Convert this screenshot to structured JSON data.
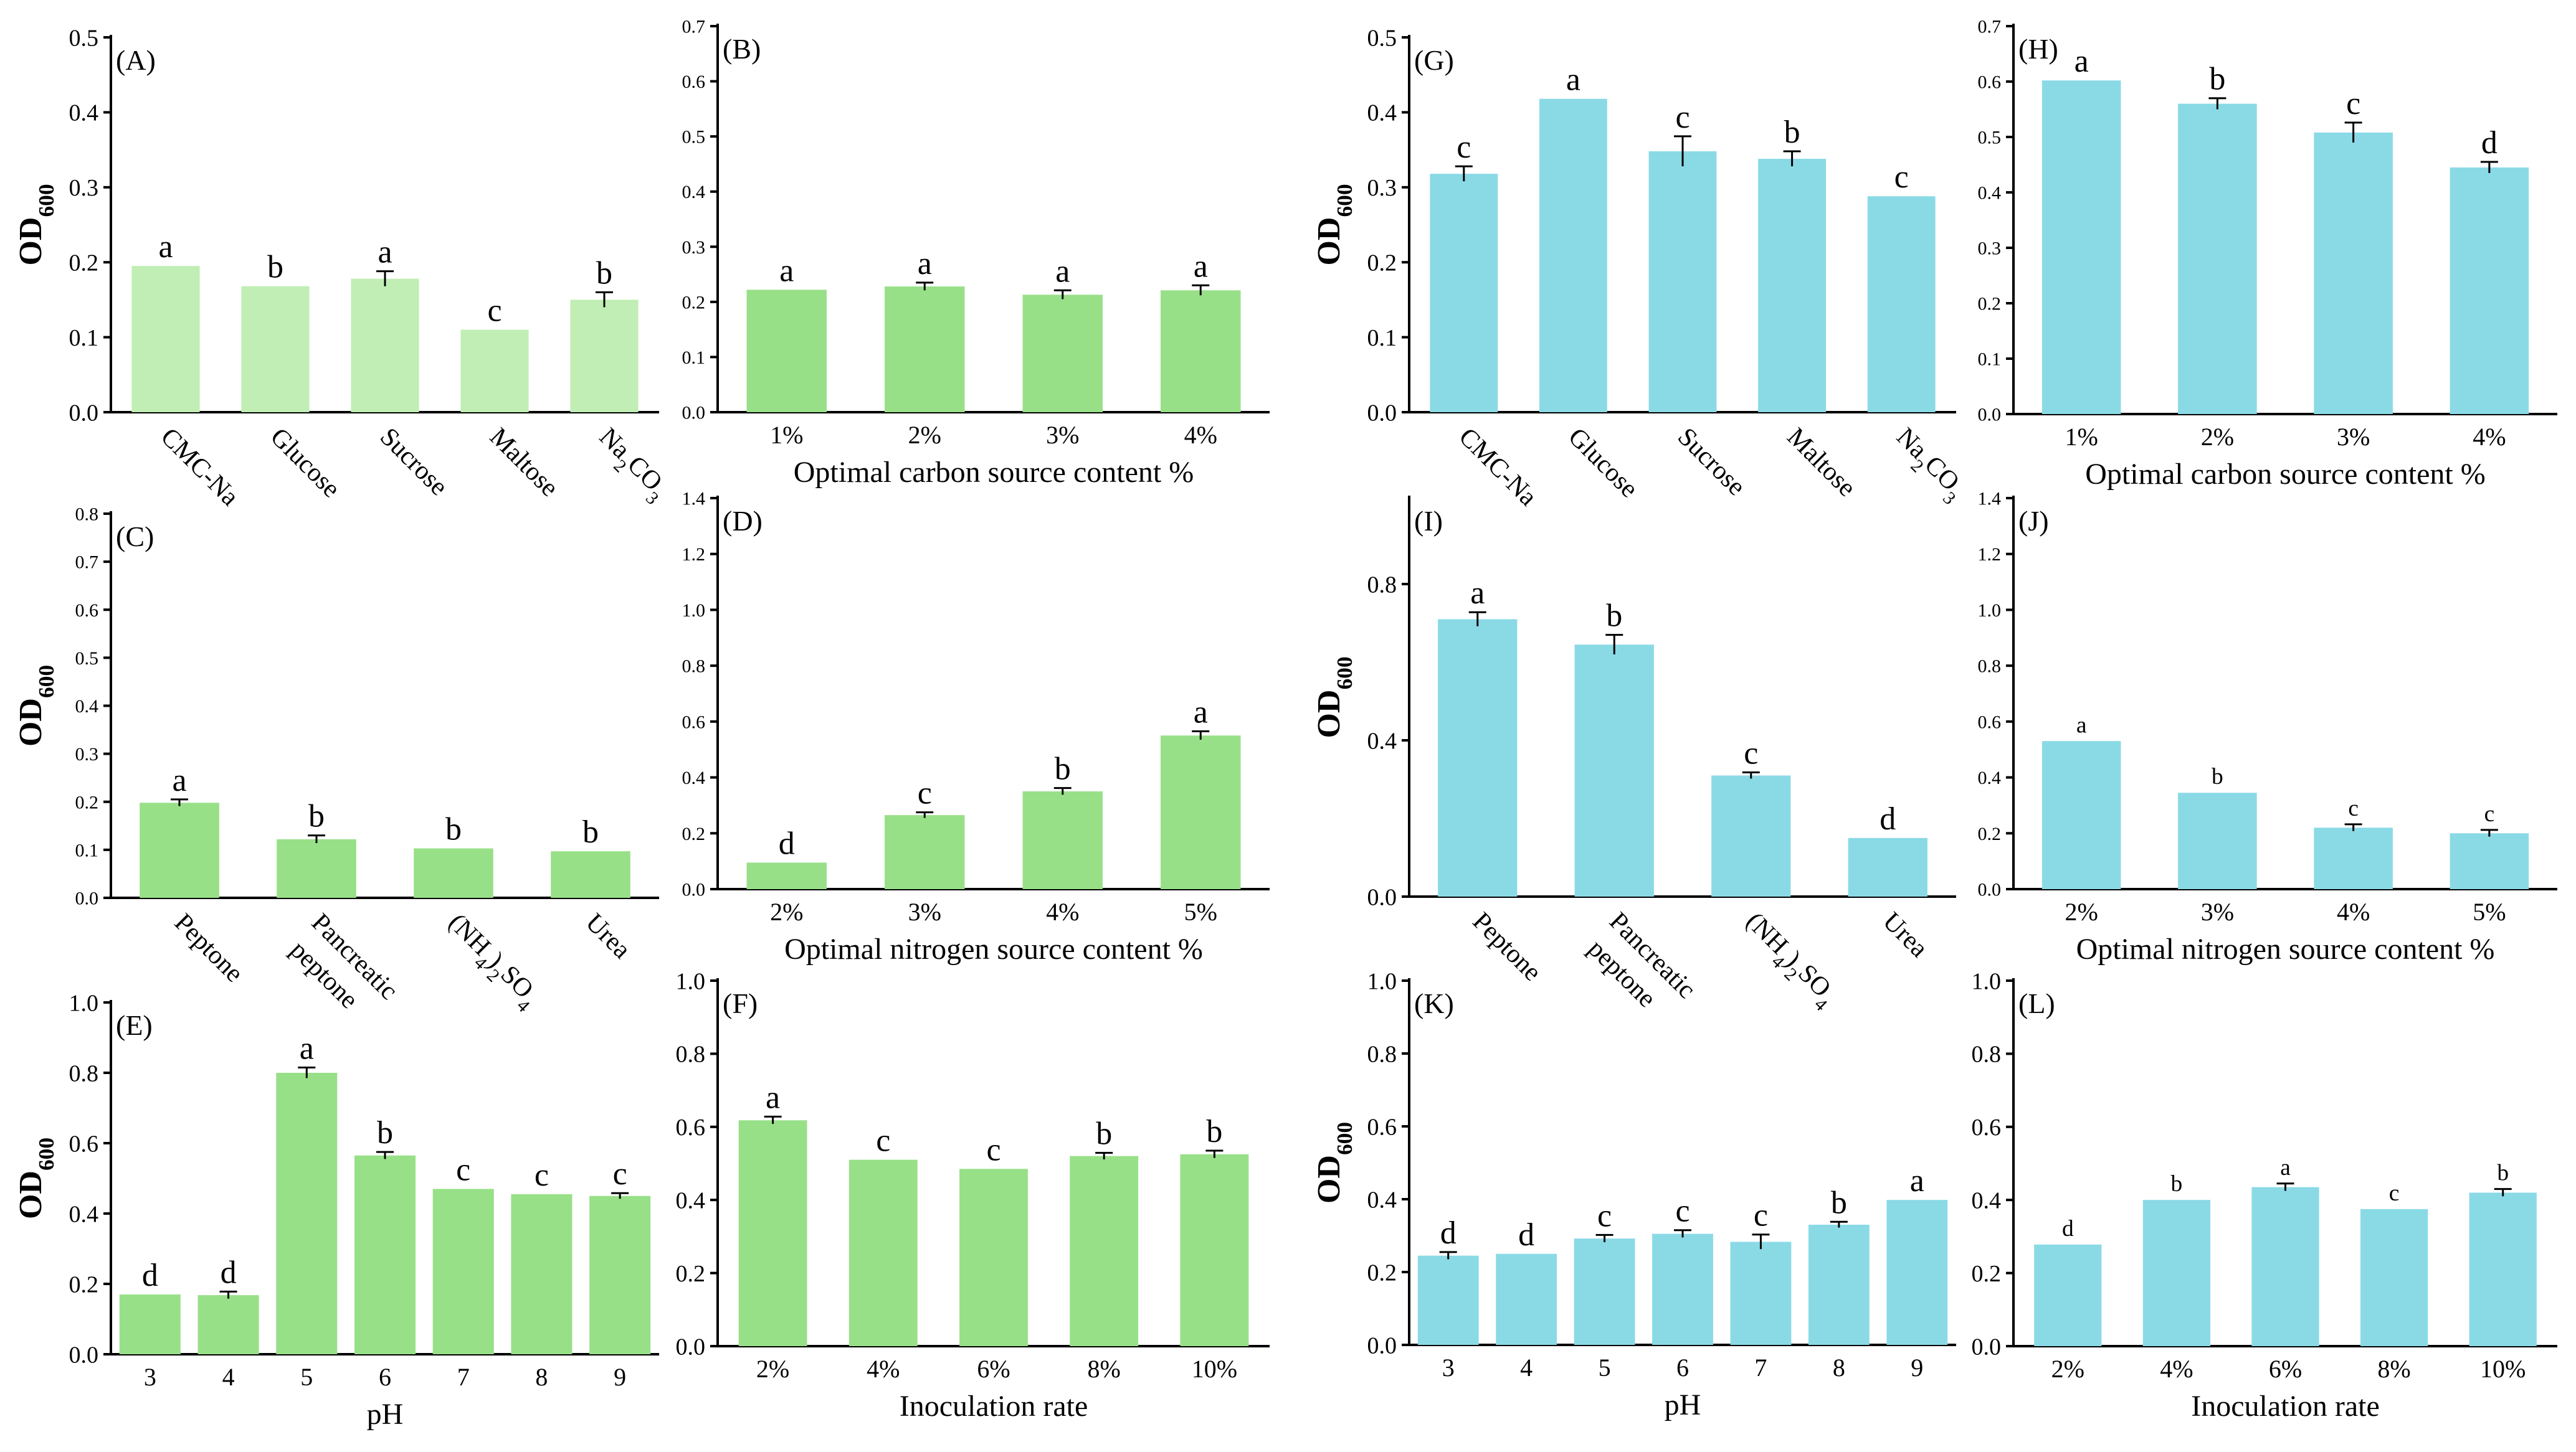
{
  "figure": {
    "ylabel_main": "OD",
    "ylabel_sub": "600",
    "colors": {
      "green": "#98e088",
      "green_light": "#c0eeb4",
      "cyan": "#8adae6",
      "error_bar": "#000000",
      "axis": "#000000"
    }
  },
  "chart_data": [
    {
      "id": "A",
      "panel_label": "(A)",
      "type": "bar",
      "color": "#c0eeb4",
      "categories": [
        {
          "parts": [
            [
              "CMC-Na",
              "n"
            ]
          ]
        },
        {
          "parts": [
            [
              "Glucose",
              "n"
            ]
          ]
        },
        {
          "parts": [
            [
              "Sucrose",
              "n"
            ]
          ]
        },
        {
          "parts": [
            [
              "Maltose",
              "n"
            ]
          ]
        },
        {
          "parts": [
            [
              "Na",
              "n"
            ],
            [
              "2",
              "sub"
            ],
            [
              "CO",
              "n"
            ],
            [
              "3",
              "sub"
            ]
          ]
        }
      ],
      "category_rotated": true,
      "values": [
        0.195,
        0.168,
        0.178,
        0.11,
        0.15
      ],
      "errors": [
        0,
        0,
        0.01,
        0,
        0.01
      ],
      "letters": [
        "a",
        "b",
        "a",
        "c",
        "b"
      ],
      "ylim": [
        0,
        0.5
      ],
      "yticks": [
        "0.0",
        "0.1",
        "0.2",
        "0.3",
        "0.4",
        "0.5"
      ],
      "show_ylabel": true,
      "xlabel": ""
    },
    {
      "id": "B",
      "panel_label": "(B)",
      "type": "bar",
      "color": "#98e088",
      "categories": [
        "1%",
        "2%",
        "3%",
        "4%"
      ],
      "values": [
        0.222,
        0.228,
        0.213,
        0.221
      ],
      "errors": [
        0,
        0.007,
        0.008,
        0.009
      ],
      "letters": [
        "a",
        "a",
        "a",
        "a"
      ],
      "ylim": [
        0,
        0.7
      ],
      "yticks": [
        "0.0",
        "0.1",
        "0.2",
        "0.3",
        "0.4",
        "0.5",
        "0.6",
        "0.7"
      ],
      "show_ylabel": false,
      "xlabel": "Optimal carbon source content %"
    },
    {
      "id": "C",
      "panel_label": "(C)",
      "type": "bar",
      "color": "#98e088",
      "categories": [
        {
          "parts": [
            [
              "Peptone",
              "n"
            ]
          ]
        },
        {
          "parts": [
            [
              "Pancreatic",
              "n"
            ]
          ],
          "line2": "peptone"
        },
        {
          "parts": [
            [
              "(NH",
              "n"
            ],
            [
              "4",
              "sub"
            ],
            [
              ")",
              "n"
            ],
            [
              "2",
              "sub"
            ],
            [
              "SO",
              "n"
            ],
            [
              "4",
              "sub"
            ]
          ]
        },
        {
          "parts": [
            [
              "Urea",
              "n"
            ]
          ]
        }
      ],
      "category_rotated": true,
      "values": [
        0.198,
        0.122,
        0.103,
        0.097
      ],
      "errors": [
        0.007,
        0.008,
        0,
        0
      ],
      "letters": [
        "a",
        "b",
        "b",
        "b"
      ],
      "ylim": [
        0,
        0.8
      ],
      "yticks": [
        "0.0",
        "0.1",
        "0.2",
        "0.3",
        "0.4",
        "0.5",
        "0.6",
        "0.7",
        "0.8"
      ],
      "show_ylabel": true,
      "xlabel": ""
    },
    {
      "id": "D",
      "panel_label": "(D)",
      "type": "bar",
      "color": "#98e088",
      "categories": [
        "2%",
        "3%",
        "4%",
        "5%"
      ],
      "values": [
        0.095,
        0.265,
        0.35,
        0.55
      ],
      "errors": [
        0,
        0.01,
        0.012,
        0.015
      ],
      "letters": [
        "d",
        "c",
        "b",
        "a"
      ],
      "ylim": [
        0,
        1.4
      ],
      "yticks": [
        "0.0",
        "0.2",
        "0.4",
        "0.6",
        "0.8",
        "1.0",
        "1.2",
        "1.4"
      ],
      "show_ylabel": false,
      "xlabel": "Optimal nitrogen source content %"
    },
    {
      "id": "E",
      "panel_label": "(E)",
      "type": "bar",
      "color": "#98e088",
      "categories": [
        "3",
        "4",
        "5",
        "6",
        "7",
        "8",
        "9"
      ],
      "values": [
        0.17,
        0.168,
        0.8,
        0.565,
        0.47,
        0.455,
        0.45
      ],
      "errors": [
        0,
        0.01,
        0.015,
        0.01,
        0,
        0,
        0.008
      ],
      "letters": [
        "d",
        "d",
        "a",
        "b",
        "c",
        "c",
        "c"
      ],
      "ylim": [
        0,
        1.0
      ],
      "yticks": [
        "0.0",
        "0.2",
        "0.4",
        "0.6",
        "0.8",
        "1.0"
      ],
      "show_ylabel": true,
      "xlabel": "pH"
    },
    {
      "id": "F",
      "panel_label": "(F)",
      "type": "bar",
      "color": "#98e088",
      "categories": [
        "2%",
        "4%",
        "6%",
        "8%",
        "10%"
      ],
      "values": [
        0.618,
        0.51,
        0.485,
        0.52,
        0.525
      ],
      "errors": [
        0.01,
        0,
        0,
        0.009,
        0.01
      ],
      "letters": [
        "a",
        "c",
        "c",
        "b",
        "b"
      ],
      "ylim": [
        0,
        1.0
      ],
      "yticks": [
        "0.0",
        "0.2",
        "0.4",
        "0.6",
        "0.8",
        "1.0"
      ],
      "show_ylabel": false,
      "xlabel": "Inoculation rate"
    },
    {
      "id": "G",
      "panel_label": "(G)",
      "type": "bar",
      "color": "#8adae6",
      "categories": [
        {
          "parts": [
            [
              "CMC-Na",
              "n"
            ]
          ]
        },
        {
          "parts": [
            [
              "Glucose",
              "n"
            ]
          ]
        },
        {
          "parts": [
            [
              "Sucrose",
              "n"
            ]
          ]
        },
        {
          "parts": [
            [
              "Maltose",
              "n"
            ]
          ]
        },
        {
          "parts": [
            [
              "Na",
              "n"
            ],
            [
              "2",
              "sub"
            ],
            [
              "CO",
              "n"
            ],
            [
              "3",
              "sub"
            ]
          ]
        }
      ],
      "category_rotated": true,
      "values": [
        0.318,
        0.418,
        0.348,
        0.338,
        0.288
      ],
      "errors": [
        0.01,
        0,
        0.02,
        0.01,
        0
      ],
      "letters": [
        "c",
        "a",
        "c",
        "b",
        "c"
      ],
      "ylim": [
        0,
        0.5
      ],
      "yticks": [
        "0.0",
        "0.1",
        "0.2",
        "0.3",
        "0.4",
        "0.5"
      ],
      "show_ylabel": true,
      "xlabel": ""
    },
    {
      "id": "H",
      "panel_label": "(H)",
      "type": "bar",
      "color": "#8adae6",
      "categories": [
        "1%",
        "2%",
        "3%",
        "4%"
      ],
      "values": [
        0.602,
        0.56,
        0.508,
        0.445
      ],
      "errors": [
        0,
        0.01,
        0.018,
        0.01
      ],
      "letters": [
        "a",
        "b",
        "c",
        "d"
      ],
      "ylim": [
        0,
        0.7
      ],
      "yticks": [
        "0.0",
        "0.1",
        "0.2",
        "0.3",
        "0.4",
        "0.5",
        "0.6",
        "0.7"
      ],
      "show_ylabel": false,
      "xlabel": "Optimal carbon source content %"
    },
    {
      "id": "I",
      "panel_label": "(I)",
      "type": "bar",
      "color": "#8adae6",
      "categories": [
        {
          "parts": [
            [
              "Peptone",
              "n"
            ]
          ]
        },
        {
          "parts": [
            [
              "Pancreatic",
              "n"
            ]
          ],
          "line2": "peptone"
        },
        {
          "parts": [
            [
              "(NH",
              "n"
            ],
            [
              "4",
              "sub"
            ],
            [
              ")",
              "n"
            ],
            [
              "2",
              "sub"
            ],
            [
              "SO",
              "n"
            ],
            [
              "4",
              "sub"
            ]
          ]
        },
        {
          "parts": [
            [
              "Urea",
              "n"
            ]
          ]
        }
      ],
      "category_rotated": true,
      "values": [
        0.71,
        0.645,
        0.31,
        0.15
      ],
      "errors": [
        0.018,
        0.025,
        0.008,
        0
      ],
      "letters": [
        "a",
        "b",
        "c",
        "d"
      ],
      "ylim": [
        0,
        1.02
      ],
      "yticks": [
        "0.0",
        "0.4",
        "0.8"
      ],
      "ytick_values": [
        0,
        0.4,
        0.8
      ],
      "show_ylabel": true,
      "xlabel": ""
    },
    {
      "id": "J",
      "panel_label": "(J)",
      "type": "bar",
      "color": "#8adae6",
      "categories": [
        "2%",
        "3%",
        "4%",
        "5%"
      ],
      "values": [
        0.53,
        0.345,
        0.22,
        0.2
      ],
      "errors": [
        0,
        0,
        0.012,
        0.012
      ],
      "letters": [
        "a",
        "b",
        "c",
        "c"
      ],
      "letter_scale": 0.72,
      "ylim": [
        0,
        1.4
      ],
      "yticks": [
        "0.0",
        "0.2",
        "0.4",
        "0.6",
        "0.8",
        "1.0",
        "1.2",
        "1.4"
      ],
      "show_ylabel": false,
      "xlabel": "Optimal nitrogen source content %"
    },
    {
      "id": "K",
      "panel_label": "(K)",
      "type": "bar",
      "color": "#8adae6",
      "categories": [
        "3",
        "4",
        "5",
        "6",
        "7",
        "8",
        "9"
      ],
      "values": [
        0.245,
        0.25,
        0.292,
        0.305,
        0.283,
        0.33,
        0.398
      ],
      "errors": [
        0.01,
        0,
        0.01,
        0.01,
        0.02,
        0.008,
        0
      ],
      "letters": [
        "d",
        "d",
        "c",
        "c",
        "c",
        "b",
        "a"
      ],
      "ylim": [
        0,
        1.0
      ],
      "yticks": [
        "0.0",
        "0.2",
        "0.4",
        "0.6",
        "0.8",
        "1.0"
      ],
      "show_ylabel": true,
      "xlabel": "pH"
    },
    {
      "id": "L",
      "panel_label": "(L)",
      "type": "bar",
      "color": "#8adae6",
      "categories": [
        "2%",
        "4%",
        "6%",
        "8%",
        "10%"
      ],
      "values": [
        0.278,
        0.4,
        0.435,
        0.375,
        0.42
      ],
      "errors": [
        0,
        0,
        0.01,
        0,
        0.01
      ],
      "letters": [
        "d",
        "b",
        "a",
        "c",
        "b"
      ],
      "letter_scale": 0.72,
      "ylim": [
        0,
        1.0
      ],
      "yticks": [
        "0.0",
        "0.2",
        "0.4",
        "0.6",
        "0.8",
        "1.0"
      ],
      "show_ylabel": false,
      "xlabel": "Inoculation rate"
    }
  ]
}
